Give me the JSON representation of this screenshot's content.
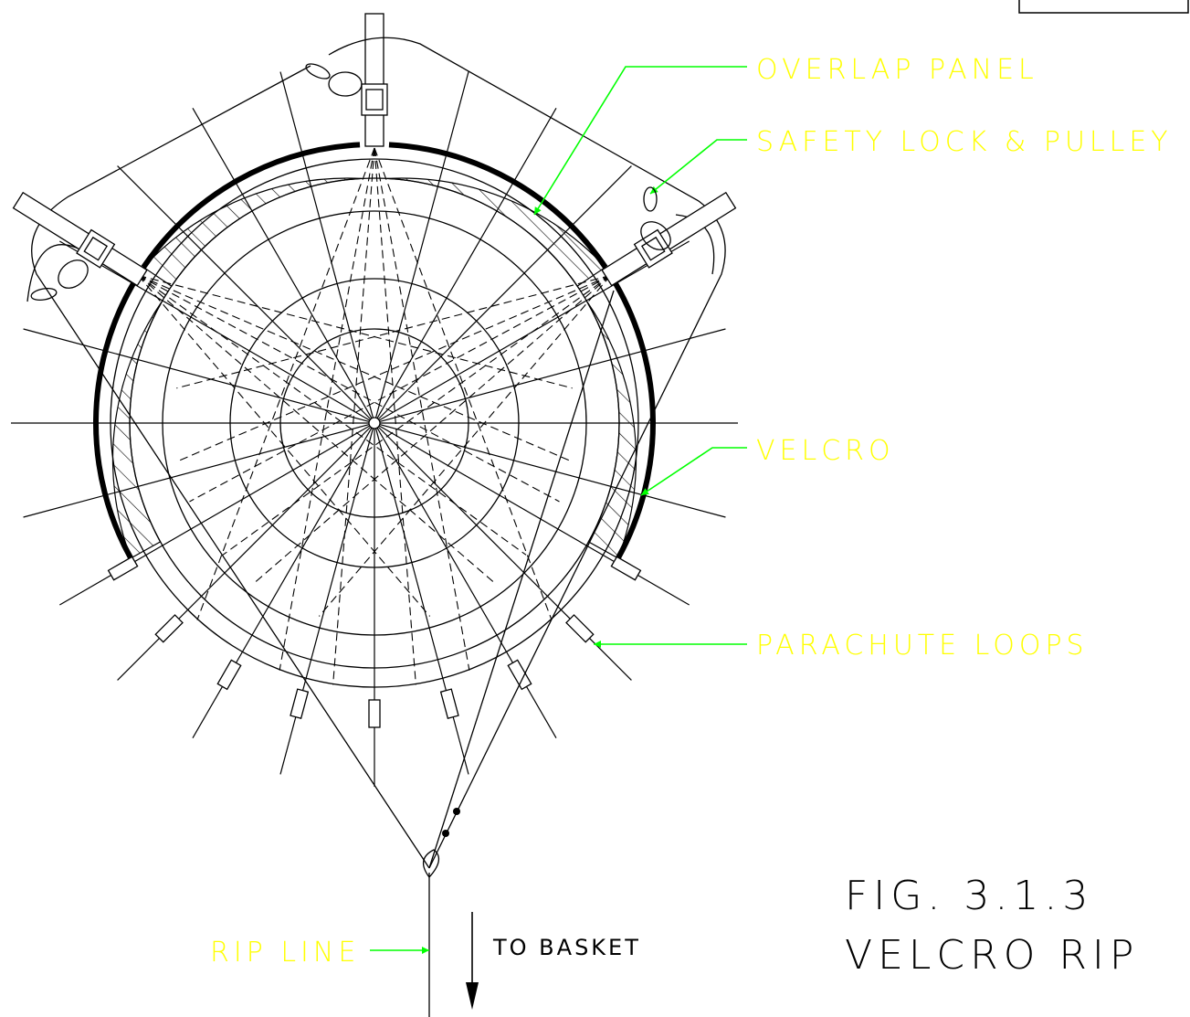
{
  "labels": {
    "overlap_panel": "OVERLAP PANEL",
    "safety_lock": "SAFETY LOCK & PULLEY",
    "velcro": "VELCRO",
    "parachute_loops": "PARACHUTE LOOPS",
    "rip_line": "RIP LINE",
    "to_basket": "TO BASKET"
  },
  "figure": {
    "number": "FIG. 3.1.3",
    "title": "VELCRO RIP"
  }
}
